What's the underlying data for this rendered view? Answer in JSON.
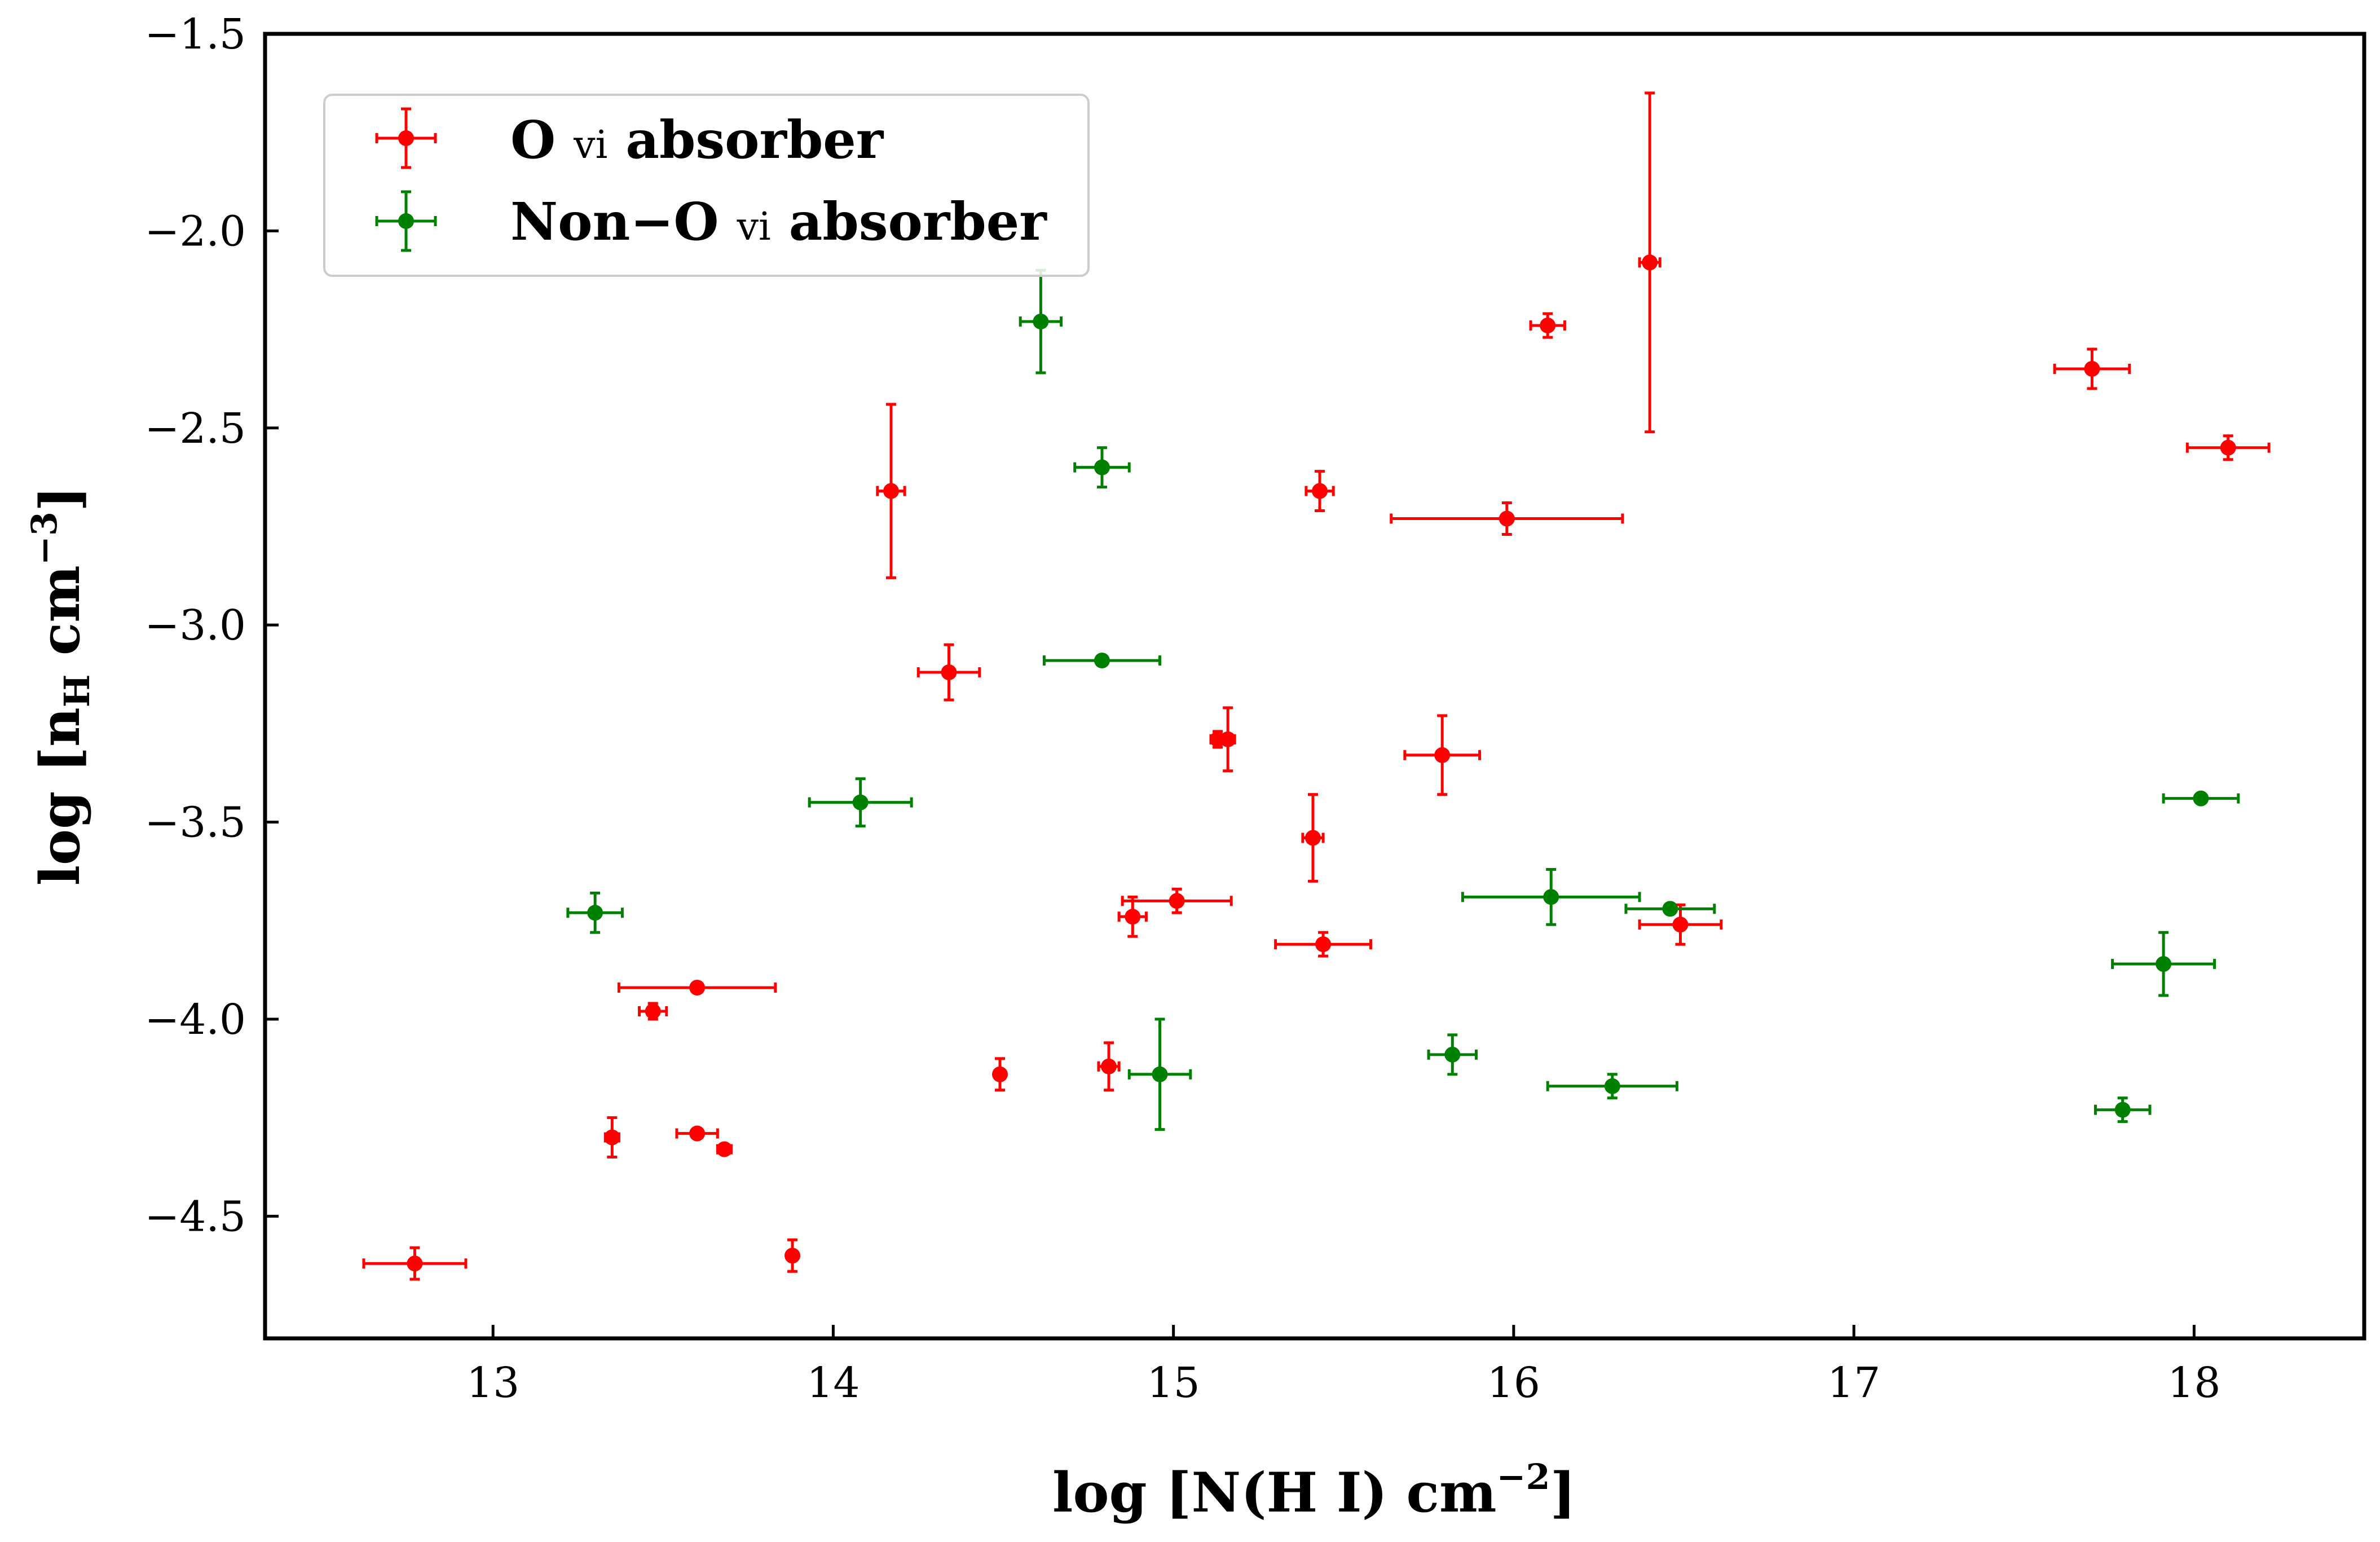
{
  "chart_data": {
    "type": "scatter",
    "xlabel": "log [N(H I) cm",
    "xlabel_sup": "−2",
    "xlabel_close": "]",
    "ylabel": "log [n",
    "ylabel_sub": "H",
    "ylabel_rest": " cm",
    "ylabel_sup": "−3",
    "ylabel_close": "]",
    "xlim": [
      12.33,
      18.5
    ],
    "ylim": [
      -4.81,
      -1.5
    ],
    "x_ticks": [
      13,
      14,
      15,
      16,
      17,
      18
    ],
    "y_ticks": [
      -4.5,
      -4.0,
      -3.5,
      -3.0,
      -2.5,
      -2.0,
      -1.5
    ],
    "x_tick_labels": [
      "13",
      "14",
      "15",
      "16",
      "17",
      "18"
    ],
    "y_tick_labels": [
      "−4.5",
      "−4.0",
      "−3.5",
      "−3.0",
      "−2.5",
      "−2.0",
      "−1.5"
    ],
    "legend_position": "top-left",
    "series": [
      {
        "name": "O vi absorber",
        "name_main": "O ",
        "name_ion": "vi",
        "name_tail": " absorber",
        "color": "#ff0000",
        "points": [
          {
            "x": 12.77,
            "y": -4.62,
            "xerr": [
              0.15,
              0.15
            ],
            "yerr": [
              0.04,
              0.04
            ]
          },
          {
            "x": 13.35,
            "y": -4.3,
            "xerr": [
              0.02,
              0.02
            ],
            "yerr": [
              0.05,
              0.05
            ]
          },
          {
            "x": 13.47,
            "y": -3.98,
            "xerr": [
              0.04,
              0.04
            ],
            "yerr": [
              0.02,
              0.02
            ]
          },
          {
            "x": 13.6,
            "y": -3.92,
            "xerr": [
              0.23,
              0.23
            ],
            "yerr": [
              0.01,
              0.01
            ]
          },
          {
            "x": 13.6,
            "y": -4.29,
            "xerr": [
              0.06,
              0.06
            ],
            "yerr": [
              0.01,
              0.01
            ]
          },
          {
            "x": 13.68,
            "y": -4.33,
            "xerr": [
              0.02,
              0.02
            ],
            "yerr": [
              0.01,
              0.01
            ]
          },
          {
            "x": 13.88,
            "y": -4.6,
            "xerr": [
              0.01,
              0.01
            ],
            "yerr": [
              0.04,
              0.04
            ]
          },
          {
            "x": 14.17,
            "y": -2.66,
            "xerr": [
              0.04,
              0.04
            ],
            "yerr": [
              0.22,
              0.22
            ]
          },
          {
            "x": 14.34,
            "y": -3.12,
            "xerr": [
              0.09,
              0.09
            ],
            "yerr": [
              0.07,
              0.07
            ]
          },
          {
            "x": 14.49,
            "y": -4.14,
            "xerr": [
              0.01,
              0.01
            ],
            "yerr": [
              0.04,
              0.04
            ]
          },
          {
            "x": 14.81,
            "y": -4.12,
            "xerr": [
              0.03,
              0.03
            ],
            "yerr": [
              0.06,
              0.06
            ]
          },
          {
            "x": 14.88,
            "y": -3.74,
            "xerr": [
              0.04,
              0.04
            ],
            "yerr": [
              0.05,
              0.05
            ]
          },
          {
            "x": 15.01,
            "y": -3.7,
            "xerr": [
              0.16,
              0.16
            ],
            "yerr": [
              0.03,
              0.03
            ]
          },
          {
            "x": 15.13,
            "y": -3.29,
            "xerr": [
              0.02,
              0.02
            ],
            "yerr": [
              0.02,
              0.02
            ]
          },
          {
            "x": 15.16,
            "y": -3.29,
            "xerr": [
              0.02,
              0.02
            ],
            "yerr": [
              0.08,
              0.08
            ]
          },
          {
            "x": 15.41,
            "y": -3.54,
            "xerr": [
              0.03,
              0.03
            ],
            "yerr": [
              0.11,
              0.11
            ]
          },
          {
            "x": 15.43,
            "y": -2.66,
            "xerr": [
              0.04,
              0.04
            ],
            "yerr": [
              0.05,
              0.05
            ]
          },
          {
            "x": 15.44,
            "y": -3.81,
            "xerr": [
              0.14,
              0.14
            ],
            "yerr": [
              0.03,
              0.03
            ]
          },
          {
            "x": 15.79,
            "y": -3.33,
            "xerr": [
              0.11,
              0.11
            ],
            "yerr": [
              0.1,
              0.1
            ]
          },
          {
            "x": 15.98,
            "y": -2.73,
            "xerr": [
              0.34,
              0.34
            ],
            "yerr": [
              0.04,
              0.04
            ]
          },
          {
            "x": 16.1,
            "y": -2.24,
            "xerr": [
              0.05,
              0.05
            ],
            "yerr": [
              0.03,
              0.03
            ]
          },
          {
            "x": 16.4,
            "y": -2.08,
            "xerr": [
              0.03,
              0.03
            ],
            "yerr": [
              0.43,
              0.43
            ]
          },
          {
            "x": 16.49,
            "y": -3.76,
            "xerr": [
              0.12,
              0.12
            ],
            "yerr": [
              0.05,
              0.05
            ]
          },
          {
            "x": 17.7,
            "y": -2.35,
            "xerr": [
              0.11,
              0.11
            ],
            "yerr": [
              0.05,
              0.05
            ]
          },
          {
            "x": 18.1,
            "y": -2.55,
            "xerr": [
              0.12,
              0.12
            ],
            "yerr": [
              0.03,
              0.03
            ]
          }
        ]
      },
      {
        "name": "Non−O vi absorber",
        "name_main": "Non−O ",
        "name_ion": "vi",
        "name_tail": " absorber",
        "color": "#008000",
        "points": [
          {
            "x": 13.3,
            "y": -3.73,
            "xerr": [
              0.08,
              0.08
            ],
            "yerr": [
              0.05,
              0.05
            ]
          },
          {
            "x": 14.08,
            "y": -3.45,
            "xerr": [
              0.15,
              0.15
            ],
            "yerr": [
              0.06,
              0.06
            ]
          },
          {
            "x": 14.61,
            "y": -2.23,
            "xerr": [
              0.06,
              0.06
            ],
            "yerr": [
              0.13,
              0.13
            ]
          },
          {
            "x": 14.79,
            "y": -2.6,
            "xerr": [
              0.08,
              0.08
            ],
            "yerr": [
              0.05,
              0.05
            ]
          },
          {
            "x": 14.79,
            "y": -3.09,
            "xerr": [
              0.17,
              0.17
            ],
            "yerr": [
              0.01,
              0.01
            ]
          },
          {
            "x": 14.96,
            "y": -4.14,
            "xerr": [
              0.09,
              0.09
            ],
            "yerr": [
              0.14,
              0.14
            ]
          },
          {
            "x": 15.82,
            "y": -4.09,
            "xerr": [
              0.07,
              0.07
            ],
            "yerr": [
              0.05,
              0.05
            ]
          },
          {
            "x": 16.11,
            "y": -3.69,
            "xerr": [
              0.26,
              0.26
            ],
            "yerr": [
              0.07,
              0.07
            ]
          },
          {
            "x": 16.29,
            "y": -4.17,
            "xerr": [
              0.19,
              0.19
            ],
            "yerr": [
              0.03,
              0.03
            ]
          },
          {
            "x": 16.46,
            "y": -3.72,
            "xerr": [
              0.13,
              0.13
            ],
            "yerr": [
              0.01,
              0.01
            ]
          },
          {
            "x": 17.79,
            "y": -4.23,
            "xerr": [
              0.08,
              0.08
            ],
            "yerr": [
              0.03,
              0.03
            ]
          },
          {
            "x": 17.91,
            "y": -3.86,
            "xerr": [
              0.15,
              0.15
            ],
            "yerr": [
              0.08,
              0.08
            ]
          },
          {
            "x": 18.02,
            "y": -3.44,
            "xerr": [
              0.11,
              0.11
            ],
            "yerr": [
              0.01,
              0.01
            ]
          }
        ]
      }
    ]
  }
}
